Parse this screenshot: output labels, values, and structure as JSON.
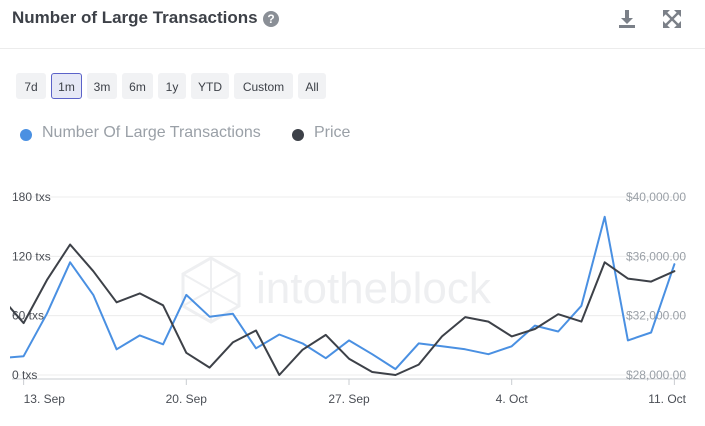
{
  "header": {
    "title": "Number of Large Transactions",
    "help_icon": "question-circle-icon"
  },
  "toolbar": {
    "download_icon": "download-icon",
    "expand_icon": "expand-icon"
  },
  "ranges": [
    {
      "label": "7d",
      "active": false
    },
    {
      "label": "1m",
      "active": true
    },
    {
      "label": "3m",
      "active": false
    },
    {
      "label": "6m",
      "active": false
    },
    {
      "label": "1y",
      "active": false
    },
    {
      "label": "YTD",
      "active": false
    },
    {
      "label": "Custom",
      "active": false
    },
    {
      "label": "All",
      "active": false
    }
  ],
  "watermark": "intotheblock",
  "colors": {
    "txs": "#4a90e2",
    "price": "#3d4148",
    "grid": "#ececec"
  },
  "chart_data": {
    "type": "line",
    "title": "Number of Large Transactions",
    "legend_position": "top-left",
    "grid": true,
    "x_tick_labels": [
      "13. Sep",
      "20. Sep",
      "27. Sep",
      "4. Oct",
      "11. Oct"
    ],
    "x_ticks_day_index": [
      0,
      7,
      14,
      21,
      28
    ],
    "x_range_day_index": [
      -0.5,
      28.5
    ],
    "y_left": {
      "ticks": [
        "0 txs",
        "60 txs",
        "120 txs",
        "180 txs"
      ],
      "range": [
        0,
        180
      ]
    },
    "y_right": {
      "ticks": [
        "$28,000.00",
        "$32,000.00",
        "$36,000.00",
        "$40,000.00"
      ],
      "range": [
        28000,
        40000
      ]
    },
    "series": [
      {
        "name": "Number Of Large Transactions",
        "axis": "left",
        "color": "#4a90e2",
        "x": [
          "Sep 12",
          "Sep 13",
          "Sep 14",
          "Sep 15",
          "Sep 16",
          "Sep 17",
          "Sep 18",
          "Sep 19",
          "Sep 20",
          "Sep 21",
          "Sep 22",
          "Sep 23",
          "Sep 24",
          "Sep 25",
          "Sep 26",
          "Sep 27",
          "Sep 28",
          "Sep 29",
          "Sep 30",
          "Oct 1",
          "Oct 2",
          "Oct 3",
          "Oct 4",
          "Oct 5",
          "Oct 6",
          "Oct 7",
          "Oct 8",
          "Oct 9",
          "Oct 10",
          "Oct 11"
        ],
        "values": [
          17,
          19,
          62,
          114,
          81,
          26,
          40,
          31,
          81,
          59,
          62,
          27,
          41,
          32,
          17,
          35,
          21,
          6,
          32,
          29,
          26,
          21,
          29,
          50,
          44,
          70,
          160,
          35,
          43,
          112
        ]
      },
      {
        "name": "Price",
        "axis": "right",
        "color": "#3d4148",
        "x": [
          "Sep 12",
          "Sep 13",
          "Sep 14",
          "Sep 15",
          "Sep 16",
          "Sep 17",
          "Sep 18",
          "Sep 19",
          "Sep 20",
          "Sep 21",
          "Sep 22",
          "Sep 23",
          "Sep 24",
          "Sep 25",
          "Sep 26",
          "Sep 27",
          "Sep 28",
          "Sep 29",
          "Sep 30",
          "Oct 1",
          "Oct 2",
          "Oct 3",
          "Oct 4",
          "Oct 5",
          "Oct 6",
          "Oct 7",
          "Oct 8",
          "Oct 9",
          "Oct 10",
          "Oct 11"
        ],
        "values": [
          33300,
          31500,
          34400,
          36800,
          35000,
          32900,
          33500,
          32700,
          29500,
          28500,
          30200,
          31000,
          28000,
          29700,
          30700,
          29100,
          28200,
          28000,
          28700,
          30600,
          31900,
          31600,
          30600,
          31100,
          32100,
          31600,
          35600,
          34500,
          34300,
          35000
        ]
      }
    ]
  }
}
